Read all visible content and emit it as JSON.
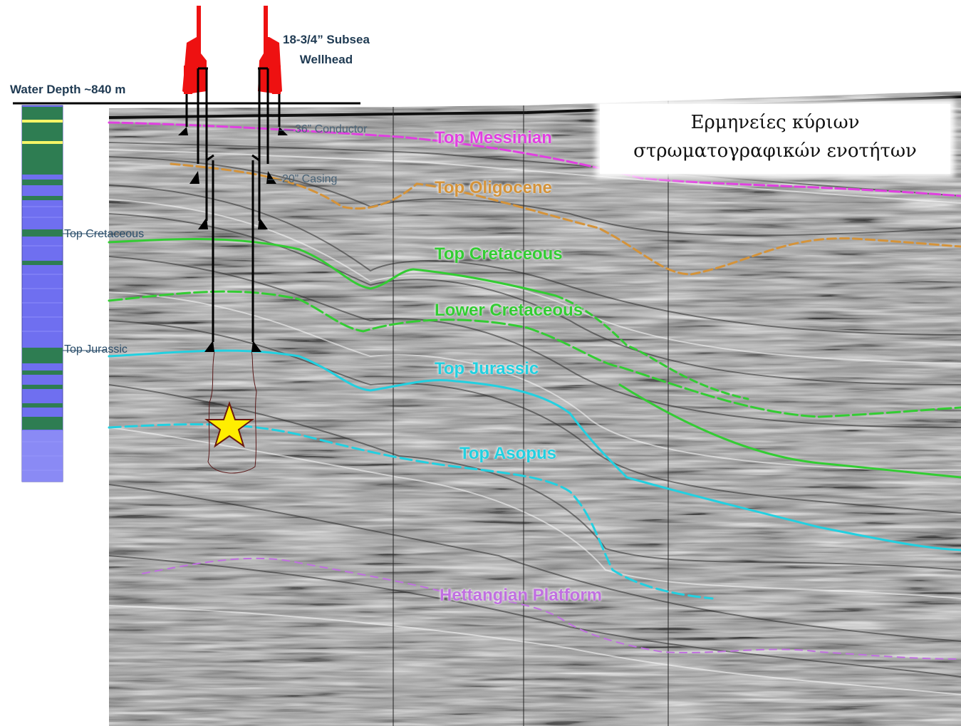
{
  "title": {
    "line1": "Ερμηνείες κύριων",
    "line2": "στρωματογραφικών ενοτήτων"
  },
  "well": {
    "water_depth": "Water Depth ~840 m",
    "wellhead_line1": "18-3/4” Subsea",
    "wellhead_line2": "Wellhead",
    "conductor": "36” Conductor",
    "casing": "20” Casing",
    "col_top_cretaceous": "Top Cretaceous",
    "col_top_jurassic": "Top Jurassic"
  },
  "horizons": [
    {
      "id": "messinian",
      "label": "Top Messinian",
      "color": "#e040e0"
    },
    {
      "id": "oligocene",
      "label": "Top Oligocene",
      "color": "#d4933a"
    },
    {
      "id": "cretaceous",
      "label": "Top Cretaceous",
      "color": "#33cc33"
    },
    {
      "id": "lower-cretaceous",
      "label": "Lower Cretaceous",
      "color": "#33cc33"
    },
    {
      "id": "jurassic",
      "label": "Top Jurassic",
      "color": "#22d0e0"
    },
    {
      "id": "asopus",
      "label": "Top Asopus",
      "color": "#22d0e0"
    },
    {
      "id": "hettangian",
      "label": "Hettangian Platform",
      "color": "#c070e0"
    }
  ],
  "colors": {
    "wellhead_red": "#ee1111",
    "column_blue": "#6f6ff0",
    "column_green": "#2e7d52",
    "column_yellow": "#f5f566",
    "target_star": "#ffee00"
  },
  "icons": {
    "target": "star-icon"
  }
}
